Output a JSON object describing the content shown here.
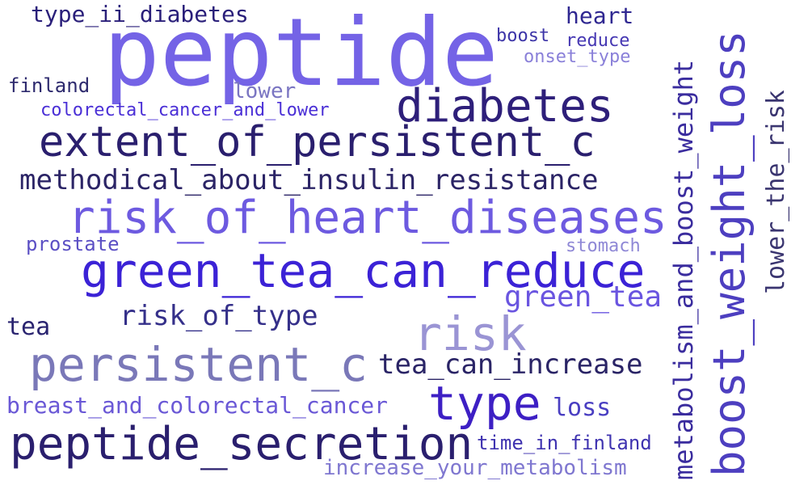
{
  "words": [
    {
      "text": "peptide",
      "color": "#7463e6"
    },
    {
      "text": "type_ii_diabetes",
      "color": "#2a1f7a"
    },
    {
      "text": "heart",
      "color": "#2f2791"
    },
    {
      "text": "boost",
      "color": "#3d35a8"
    },
    {
      "text": "reduce",
      "color": "#4638b3"
    },
    {
      "text": "onset_type",
      "color": "#8a80d9"
    },
    {
      "text": "finland",
      "color": "#2e2a6e"
    },
    {
      "text": "lower",
      "color": "#7a75c2"
    },
    {
      "text": "colorectal_cancer_and_lower",
      "color": "#4a2fd6"
    },
    {
      "text": "diabetes",
      "color": "#2e1f7a"
    },
    {
      "text": "extent_of_persistent_c",
      "color": "#2a1f6e"
    },
    {
      "text": "methodical_about_insulin_resistance",
      "color": "#2b2466"
    },
    {
      "text": "risk_of_heart_diseases",
      "color": "#6d5ae0"
    },
    {
      "text": "prostate",
      "color": "#5b4fc4"
    },
    {
      "text": "stomach",
      "color": "#8f88d6"
    },
    {
      "text": "green_tea_can_reduce",
      "color": "#3b22d6"
    },
    {
      "text": "green_tea",
      "color": "#6a55e0"
    },
    {
      "text": "risk_of_type",
      "color": "#35308a"
    },
    {
      "text": "tea",
      "color": "#2a2470"
    },
    {
      "text": "risk",
      "color": "#9a94d4"
    },
    {
      "text": "persistent_c",
      "color": "#7a78b8"
    },
    {
      "text": "tea_can_increase",
      "color": "#2a2466"
    },
    {
      "text": "type",
      "color": "#3d1fc4"
    },
    {
      "text": "breast_and_colorectal_cancer",
      "color": "#6a58d6"
    },
    {
      "text": "loss",
      "color": "#4a3fc2"
    },
    {
      "text": "peptide_secretion",
      "color": "#2a1f6e"
    },
    {
      "text": "time_in_finland",
      "color": "#3f33b0"
    },
    {
      "text": "increase_your_metabolism",
      "color": "#7f77d0"
    },
    {
      "text": "boost_weight_loss",
      "color": "#4d3fc0"
    },
    {
      "text": "metabolism_and_boost_weight",
      "color": "#3a2c9e"
    },
    {
      "text": "lower_the_risk",
      "color": "#3a3570"
    }
  ]
}
